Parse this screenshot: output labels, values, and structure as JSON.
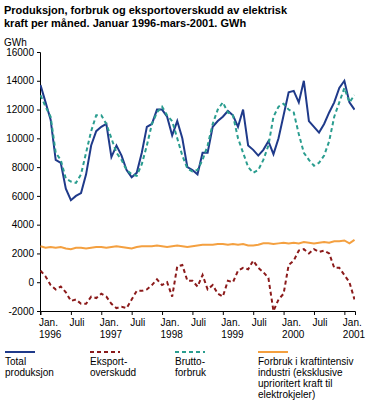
{
  "chart_data": {
    "type": "line",
    "title": "Produksjon, forbruk og eksportoverskudd av elektrisk\nkraft per måned. Januar 1996-mars-2001. GWh",
    "y_label": "GWh",
    "categories": [
      "Jan.\n1996",
      null,
      null,
      null,
      null,
      null,
      "Juli",
      null,
      null,
      null,
      null,
      null,
      "Jan.\n1997",
      null,
      null,
      null,
      null,
      null,
      "Juli",
      null,
      null,
      null,
      null,
      null,
      "Jan.\n1998",
      null,
      null,
      null,
      null,
      null,
      "Juli",
      null,
      null,
      null,
      null,
      null,
      "Jan.\n1999",
      null,
      null,
      null,
      null,
      null,
      "Juli",
      null,
      null,
      null,
      null,
      null,
      "Jan.\n2000",
      null,
      null,
      null,
      null,
      null,
      "Juli",
      null,
      null,
      null,
      null,
      null,
      "Jan.\n2001",
      null,
      null
    ],
    "ylim": [
      -2000,
      16000
    ],
    "yticks": [
      -2000,
      0,
      2000,
      4000,
      6000,
      8000,
      10000,
      12000,
      14000,
      16000
    ],
    "grid": false,
    "legend": "bottom",
    "series": [
      {
        "name": "Total\nproduksjon",
        "color": "#1f3a8a",
        "line_style": "solid",
        "values": [
          13700,
          12500,
          11300,
          8500,
          8300,
          6500,
          5700,
          6000,
          6200,
          7500,
          9500,
          10500,
          10800,
          11000,
          8700,
          9500,
          8800,
          7800,
          7300,
          7600,
          9000,
          10800,
          11000,
          12000,
          12000,
          11500,
          10200,
          11200,
          10000,
          8000,
          7800,
          7500,
          9000,
          9000,
          10800,
          11200,
          11500,
          11900,
          11600,
          10800,
          12000,
          9500,
          9200,
          8800,
          9200,
          9800,
          8900,
          10000,
          11600,
          13200,
          13300,
          12500,
          14000,
          11200,
          10800,
          10400,
          11000,
          11800,
          12500,
          13500,
          14000,
          12500,
          12000
        ]
      },
      {
        "name": "Eksport-\noverskudd",
        "color": "#8b1a1a",
        "line_style": "dashed",
        "values": [
          800,
          400,
          -200,
          -500,
          -300,
          -700,
          -1300,
          -1200,
          -1500,
          -1500,
          -1000,
          -1100,
          -800,
          -1000,
          -1500,
          -1800,
          -1700,
          -1800,
          -1200,
          -600,
          -600,
          -500,
          -200,
          200,
          -200,
          0,
          -1000,
          1100,
          1200,
          100,
          100,
          -300,
          500,
          -500,
          -200,
          -800,
          -1000,
          100,
          0,
          800,
          1000,
          900,
          1500,
          1000,
          700,
          300,
          -2000,
          -1200,
          -800,
          1200,
          1500,
          2200,
          2300,
          2000,
          2300,
          2100,
          2200,
          2000,
          1000,
          1000,
          500,
          0,
          -1200
        ]
      },
      {
        "name": "Brutto-\nforbruk",
        "color": "#2a9d8f",
        "line_style": "dashed",
        "values": [
          13000,
          12200,
          11500,
          9000,
          8500,
          7200,
          7000,
          6900,
          7500,
          9000,
          10500,
          11600,
          11600,
          11000,
          10000,
          9000,
          8500,
          7800,
          7500,
          7400,
          8200,
          9500,
          11000,
          11800,
          12200,
          11600,
          11200,
          10000,
          8800,
          7900,
          7700,
          7800,
          8500,
          9500,
          11000,
          12000,
          12500,
          11800,
          11600,
          10000,
          9000,
          8000,
          7600,
          7800,
          8500,
          9500,
          11500,
          12200,
          12400,
          12000,
          11800,
          10300,
          9000,
          8500,
          8100,
          8300,
          8800,
          9800,
          11500,
          12500,
          13500,
          12500,
          13000
        ]
      },
      {
        "name": "Forbruk i kraftintensiv\nindustri (eksklusive\nuprioritert kraft til\nelektrokjeler)",
        "color": "#f4a040",
        "line_style": "solid",
        "values": [
          2500,
          2400,
          2450,
          2400,
          2450,
          2350,
          2300,
          2400,
          2400,
          2350,
          2400,
          2450,
          2450,
          2400,
          2450,
          2500,
          2450,
          2400,
          2350,
          2450,
          2500,
          2500,
          2500,
          2550,
          2500,
          2450,
          2500,
          2550,
          2500,
          2450,
          2500,
          2550,
          2600,
          2600,
          2600,
          2650,
          2650,
          2600,
          2650,
          2600,
          2650,
          2550,
          2550,
          2600,
          2700,
          2700,
          2650,
          2700,
          2750,
          2700,
          2750,
          2700,
          2800,
          2750,
          2700,
          2750,
          2800,
          2750,
          2850,
          2850,
          2900,
          2700,
          2950
        ]
      }
    ]
  }
}
